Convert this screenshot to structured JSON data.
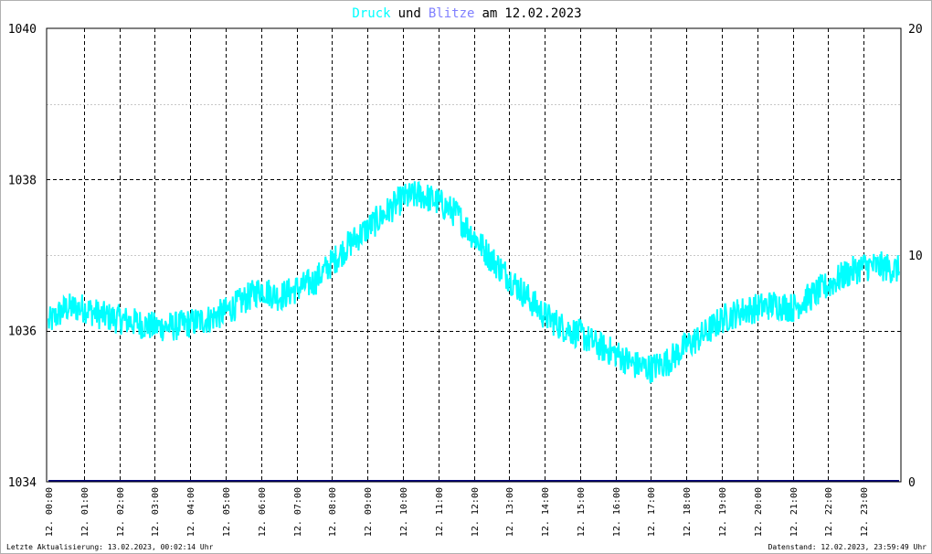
{
  "title": {
    "series1": "Druck",
    "and": "und",
    "series2": "Blitze",
    "am": "am",
    "date": "12.02.2023"
  },
  "colors": {
    "druck": "#00ffff",
    "blitze": "#8080ff",
    "title_text": "#000000",
    "blitze_line": "#000080"
  },
  "footer": {
    "left": "Letzte Aktualisierung: 13.02.2023, 00:02:14 Uhr",
    "right": "Datenstand: 12.02.2023, 23:59:49 Uhr"
  },
  "chart_data": {
    "type": "line",
    "title": "Druck und Blitze am 12.02.2023",
    "y_left": {
      "min": 1034,
      "max": 1040,
      "ticks": [
        "1034",
        "1036",
        "1038",
        "1040"
      ]
    },
    "y_right": {
      "min": 0,
      "max": 20,
      "ticks": [
        "0",
        "10",
        "20"
      ]
    },
    "x_ticks": [
      "12. 00:00",
      "12. 01:00",
      "12. 02:00",
      "12. 03:00",
      "12. 04:00",
      "12. 05:00",
      "12. 06:00",
      "12. 07:00",
      "12. 08:00",
      "12. 09:00",
      "12. 10:00",
      "12. 11:00",
      "12. 12:00",
      "12. 13:00",
      "12. 14:00",
      "12. 15:00",
      "12. 16:00",
      "12. 17:00",
      "12. 18:00",
      "12. 19:00",
      "12. 20:00",
      "12. 21:00",
      "12. 22:00",
      "12. 23:00"
    ],
    "grid": true,
    "series": [
      {
        "name": "Druck",
        "axis": "left",
        "hours": [
          0,
          0.5,
          1,
          1.5,
          2,
          2.5,
          3,
          3.5,
          4,
          4.5,
          5,
          5.5,
          6,
          6.5,
          7,
          7.5,
          8,
          8.5,
          9,
          9.5,
          10,
          10.5,
          11,
          11.5,
          12,
          12.5,
          13,
          13.5,
          14,
          14.5,
          15,
          15.5,
          16,
          16.5,
          17,
          17.5,
          18,
          18.5,
          19,
          19.5,
          20,
          20.5,
          21,
          21.5,
          22,
          22.5,
          23,
          23.5,
          24
        ],
        "values": [
          1036.1,
          1036.3,
          1036.3,
          1036.2,
          1036.15,
          1036.1,
          1036.05,
          1036.05,
          1036.1,
          1036.15,
          1036.25,
          1036.4,
          1036.55,
          1036.45,
          1036.55,
          1036.65,
          1036.9,
          1037.15,
          1037.35,
          1037.55,
          1037.75,
          1037.8,
          1037.7,
          1037.55,
          1037.25,
          1036.95,
          1036.7,
          1036.45,
          1036.2,
          1036.05,
          1035.95,
          1035.8,
          1035.7,
          1035.55,
          1035.5,
          1035.6,
          1035.8,
          1035.95,
          1036.15,
          1036.25,
          1036.3,
          1036.35,
          1036.3,
          1036.45,
          1036.6,
          1036.75,
          1036.85,
          1036.85,
          1036.8
        ],
        "noise_range": 0.2
      },
      {
        "name": "Blitze",
        "axis": "right",
        "hours": [
          0,
          24
        ],
        "values": [
          0,
          0
        ]
      }
    ]
  }
}
